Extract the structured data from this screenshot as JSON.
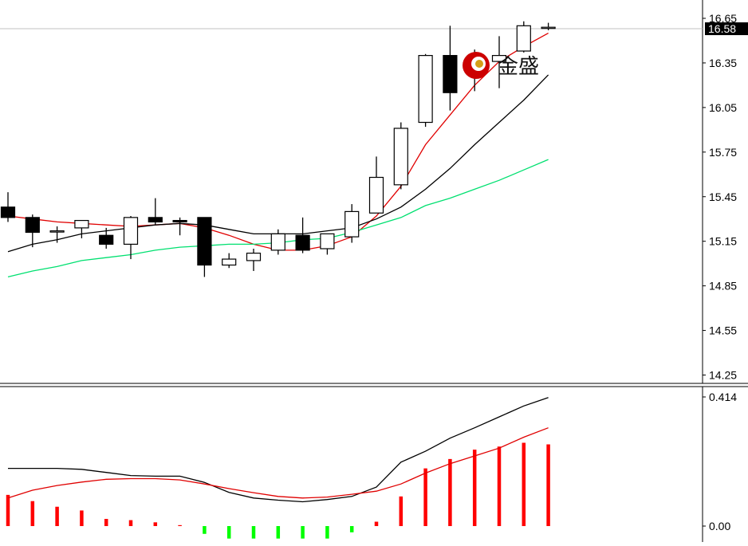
{
  "chart_data": [
    {
      "type": "candlestick",
      "title": "",
      "ylim": [
        14.2,
        16.68
      ],
      "yticks": [
        "16.65",
        "16.35",
        "16.05",
        "15.75",
        "15.45",
        "15.15",
        "14.85",
        "14.55",
        "14.25"
      ],
      "ytick_values": [
        16.65,
        16.35,
        16.05,
        15.75,
        15.45,
        15.15,
        14.85,
        14.55,
        14.25
      ],
      "current_price": 16.58,
      "current_price_label": "16.58",
      "candles": [
        {
          "open": 15.38,
          "high": 15.48,
          "low": 15.28,
          "close": 15.31
        },
        {
          "open": 15.31,
          "high": 15.33,
          "low": 15.11,
          "close": 15.21
        },
        {
          "open": 15.22,
          "high": 15.25,
          "low": 15.14,
          "close": 15.22
        },
        {
          "open": 15.24,
          "high": 15.29,
          "low": 15.17,
          "close": 15.29
        },
        {
          "open": 15.19,
          "high": 15.24,
          "low": 15.1,
          "close": 15.13
        },
        {
          "open": 15.13,
          "high": 15.32,
          "low": 15.03,
          "close": 15.31
        },
        {
          "open": 15.31,
          "high": 15.44,
          "low": 15.26,
          "close": 15.28
        },
        {
          "open": 15.29,
          "high": 15.31,
          "low": 15.19,
          "close": 15.28
        },
        {
          "open": 15.31,
          "high": 15.31,
          "low": 14.91,
          "close": 14.99
        },
        {
          "open": 14.99,
          "high": 15.07,
          "low": 14.97,
          "close": 15.03
        },
        {
          "open": 15.02,
          "high": 15.1,
          "low": 14.95,
          "close": 15.07
        },
        {
          "open": 15.09,
          "high": 15.23,
          "low": 15.06,
          "close": 15.2
        },
        {
          "open": 15.19,
          "high": 15.31,
          "low": 15.07,
          "close": 15.09
        },
        {
          "open": 15.1,
          "high": 15.2,
          "low": 15.06,
          "close": 15.2
        },
        {
          "open": 15.18,
          "high": 15.4,
          "low": 15.14,
          "close": 15.35
        },
        {
          "open": 15.34,
          "high": 15.72,
          "low": 15.34,
          "close": 15.58
        },
        {
          "open": 15.53,
          "high": 15.95,
          "low": 15.5,
          "close": 15.91
        },
        {
          "open": 15.95,
          "high": 16.41,
          "low": 15.92,
          "close": 16.4
        },
        {
          "open": 16.4,
          "high": 16.6,
          "low": 16.03,
          "close": 16.15
        },
        {
          "open": 16.39,
          "high": 16.44,
          "low": 16.16,
          "close": 16.32
        },
        {
          "open": 16.36,
          "high": 16.53,
          "low": 16.18,
          "close": 16.4
        },
        {
          "open": 16.43,
          "high": 16.63,
          "low": 16.42,
          "close": 16.6
        },
        {
          "open": 16.59,
          "high": 16.62,
          "low": 16.57,
          "close": 16.59
        }
      ],
      "series": [
        {
          "color": "#e00000",
          "values": [
            15.32,
            15.3,
            15.28,
            15.27,
            15.26,
            15.25,
            15.26,
            15.27,
            15.24,
            15.19,
            15.13,
            15.09,
            15.09,
            15.12,
            15.18,
            15.32,
            15.52,
            15.8,
            16.0,
            16.2,
            16.36,
            16.46,
            16.55
          ]
        },
        {
          "color": "#000000",
          "values": [
            15.08,
            15.13,
            15.16,
            15.2,
            15.22,
            15.24,
            15.26,
            15.27,
            15.26,
            15.23,
            15.2,
            15.2,
            15.2,
            15.22,
            15.24,
            15.3,
            15.38,
            15.5,
            15.64,
            15.8,
            15.95,
            16.1,
            16.27
          ]
        },
        {
          "color": "#00e070",
          "values": [
            14.91,
            14.95,
            14.98,
            15.02,
            15.04,
            15.06,
            15.09,
            15.11,
            15.12,
            15.13,
            15.13,
            15.14,
            15.16,
            15.17,
            15.21,
            15.26,
            15.31,
            15.39,
            15.44,
            15.5,
            15.56,
            15.63,
            15.7
          ]
        }
      ]
    },
    {
      "type": "bar",
      "title": "",
      "ylim": [
        -0.045,
        0.43
      ],
      "yticks": [
        "0.414",
        "0.00"
      ],
      "ytick_values": [
        0.414,
        0.0
      ],
      "values": [
        0.1,
        0.08,
        0.062,
        0.05,
        0.023,
        0.019,
        0.012,
        0.003,
        -0.025,
        -0.04,
        -0.04,
        -0.04,
        -0.04,
        -0.04,
        -0.02,
        0.014,
        0.095,
        0.185,
        0.215,
        0.245,
        0.255,
        0.267,
        0.262
      ],
      "up_color": "#ff0000",
      "down_color": "#00ff00",
      "series": [
        {
          "color": "#000000",
          "values": [
            0.185,
            0.185,
            0.185,
            0.182,
            0.172,
            0.162,
            0.16,
            0.16,
            0.14,
            0.108,
            0.09,
            0.083,
            0.078,
            0.085,
            0.095,
            0.125,
            0.205,
            0.24,
            0.282,
            0.315,
            0.35,
            0.385,
            0.412
          ]
        },
        {
          "color": "#e00000",
          "values": [
            0.09,
            0.115,
            0.13,
            0.141,
            0.15,
            0.152,
            0.152,
            0.148,
            0.135,
            0.12,
            0.107,
            0.095,
            0.09,
            0.093,
            0.102,
            0.112,
            0.135,
            0.17,
            0.2,
            0.225,
            0.25,
            0.285,
            0.315
          ]
        }
      ]
    }
  ],
  "watermark": {
    "text": "金盛",
    "logo_color": "#cc0000",
    "logo_inner_color": "#d4a017"
  }
}
